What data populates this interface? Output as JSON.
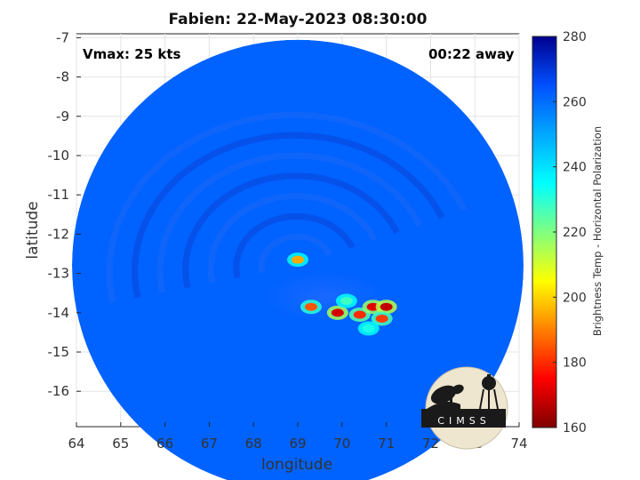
{
  "header": {
    "title": "Fabien: 22-May-2023 08:30:00"
  },
  "annotations": {
    "vmax": "Vmax: 25 kts",
    "time_away": "00:22 away"
  },
  "logo": {
    "text": "CIMSS"
  },
  "chart_data": {
    "type": "heatmap",
    "title": "Fabien: 22-May-2023 08:30:00",
    "xlabel": "longitude",
    "ylabel": "latitude",
    "xlim": [
      64,
      74
    ],
    "ylim": [
      -16.9,
      -6.9
    ],
    "x_ticks": [
      64,
      65,
      66,
      67,
      68,
      69,
      70,
      71,
      72,
      73,
      74
    ],
    "y_ticks": [
      -7,
      -8,
      -9,
      -10,
      -11,
      -12,
      -13,
      -14,
      -15,
      -16
    ],
    "grid": true,
    "swath": {
      "center_lon": 69.0,
      "center_lat": -12.8,
      "radius_deg": 5.1
    },
    "colorbar": {
      "label": "Brightness Temp - Horizontal Polarization",
      "min": 160,
      "max": 280,
      "ticks": [
        160,
        180,
        200,
        220,
        240,
        260,
        280
      ],
      "colormap": [
        "#7f0000",
        "#ff0000",
        "#ffff00",
        "#00ffff",
        "#0050ff",
        "#00008f"
      ]
    },
    "background_value": 262,
    "cold_features": [
      {
        "lon": 69.0,
        "lat": -12.65,
        "value": 195
      },
      {
        "lon": 69.3,
        "lat": -13.85,
        "value": 185
      },
      {
        "lon": 69.9,
        "lat": -14.0,
        "value": 170
      },
      {
        "lon": 70.4,
        "lat": -14.05,
        "value": 180
      },
      {
        "lon": 70.7,
        "lat": -13.85,
        "value": 172
      },
      {
        "lon": 71.0,
        "lat": -13.85,
        "value": 168
      },
      {
        "lon": 70.9,
        "lat": -14.15,
        "value": 182
      },
      {
        "lon": 70.1,
        "lat": -13.7,
        "value": 228
      },
      {
        "lon": 70.6,
        "lat": -14.4,
        "value": 232
      }
    ]
  }
}
